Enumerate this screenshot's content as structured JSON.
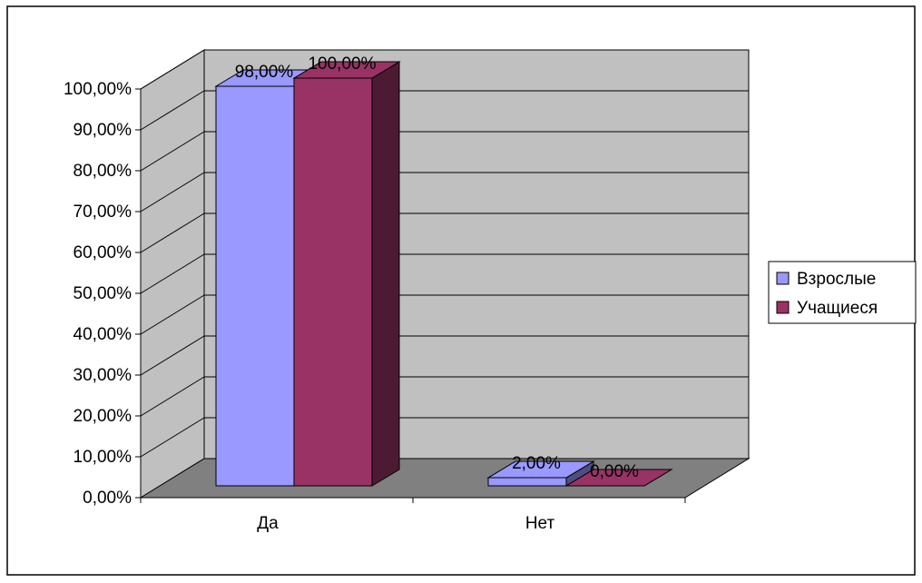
{
  "chart_data": {
    "type": "bar",
    "style": "3d-clustered-column",
    "title": "",
    "xlabel": "",
    "ylabel": "",
    "categories": [
      "Да",
      "Нет"
    ],
    "series": [
      {
        "name": "Взрослые",
        "color": "#9999ff",
        "values": [
          0.98,
          0.02
        ],
        "data_labels": [
          "98,00%",
          "2,00%"
        ]
      },
      {
        "name": "Учащиеся",
        "color": "#993366",
        "values": [
          1.0,
          0.0
        ],
        "data_labels": [
          "100,00%",
          "0,00%"
        ]
      }
    ],
    "y_ticks": [
      "0,00%",
      "10,00%",
      "20,00%",
      "30,00%",
      "40,00%",
      "50,00%",
      "60,00%",
      "70,00%",
      "80,00%",
      "90,00%",
      "100,00%"
    ],
    "ylim": [
      0,
      1.0
    ],
    "grid": true,
    "legend_position": "right",
    "wall_color": "#c0c0c0",
    "floor_color": "#808080"
  }
}
